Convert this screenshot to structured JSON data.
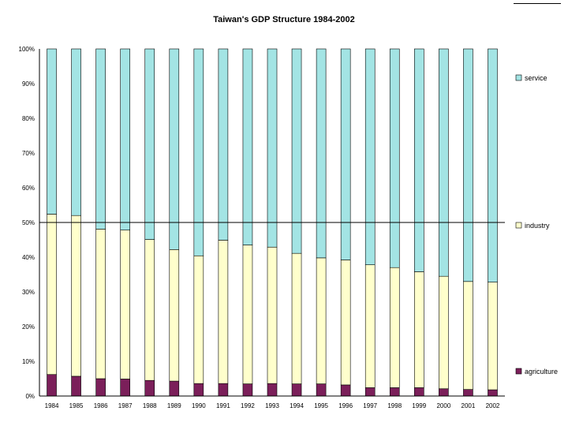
{
  "chart_data": {
    "type": "bar",
    "stacked": true,
    "percent": true,
    "title": "Taiwan's GDP Structure 1984-2002",
    "xlabel": "",
    "ylabel": "",
    "ylim": [
      0,
      100
    ],
    "y_ticks": [
      "0%",
      "10%",
      "20%",
      "30%",
      "40%",
      "50%",
      "60%",
      "70%",
      "80%",
      "90%",
      "100%"
    ],
    "reference_line": 50,
    "categories": [
      "1984",
      "1985",
      "1986",
      "1987",
      "1988",
      "1989",
      "1990",
      "1991",
      "1992",
      "1993",
      "1994",
      "1995",
      "1996",
      "1997",
      "1998",
      "1999",
      "2000",
      "2001",
      "2002"
    ],
    "series": [
      {
        "name": "agriculture",
        "color": "#7b1f5a",
        "values": [
          6.2,
          5.7,
          5.0,
          4.9,
          4.5,
          4.3,
          3.6,
          3.6,
          3.5,
          3.6,
          3.5,
          3.5,
          3.2,
          2.4,
          2.4,
          2.4,
          2.1,
          1.9,
          1.8
        ]
      },
      {
        "name": "industry",
        "color": "#ffffcc",
        "values": [
          46.2,
          46.3,
          43.1,
          42.9,
          40.6,
          37.9,
          36.8,
          41.3,
          40.0,
          39.3,
          37.6,
          36.3,
          36.0,
          35.4,
          34.6,
          33.4,
          32.4,
          31.1,
          31.0
        ]
      },
      {
        "name": "service",
        "color": "#a3e4e4",
        "values": [
          47.6,
          48.0,
          51.9,
          52.2,
          54.9,
          57.8,
          59.6,
          55.1,
          56.5,
          57.1,
          58.9,
          60.2,
          60.8,
          62.2,
          63.0,
          64.2,
          65.5,
          67.0,
          67.2
        ]
      }
    ],
    "legend_position": "right"
  }
}
